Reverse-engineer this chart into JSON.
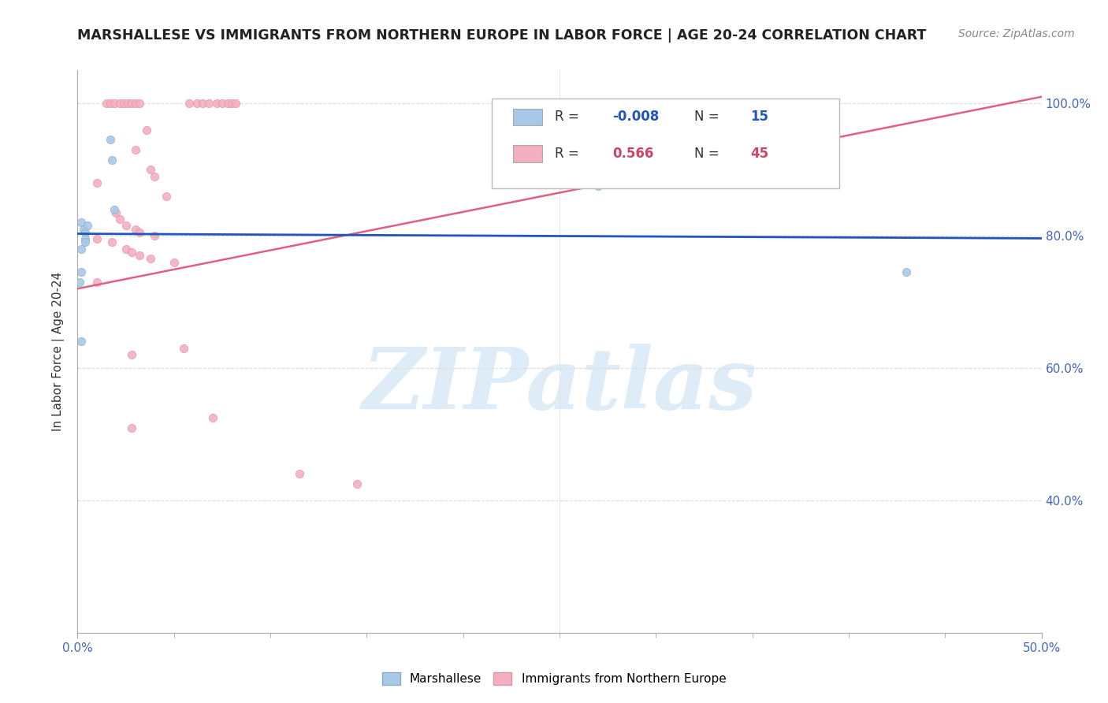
{
  "title": "MARSHALLESE VS IMMIGRANTS FROM NORTHERN EUROPE IN LABOR FORCE | AGE 20-24 CORRELATION CHART",
  "source": "Source: ZipAtlas.com",
  "ylabel": "In Labor Force | Age 20-24",
  "xlim": [
    0.0,
    0.5
  ],
  "ylim": [
    0.2,
    1.05
  ],
  "xtick_labels_bottom": [
    "0.0%",
    "50.0%"
  ],
  "xtick_vals_bottom": [
    0.0,
    0.5
  ],
  "ytick_labels": [
    "40.0%",
    "60.0%",
    "80.0%",
    "100.0%"
  ],
  "ytick_vals": [
    0.4,
    0.6,
    0.8,
    1.0
  ],
  "marshallese_points": [
    [
      0.002,
      0.82
    ],
    [
      0.003,
      0.81
    ],
    [
      0.004,
      0.805
    ],
    [
      0.004,
      0.795
    ],
    [
      0.004,
      0.79
    ],
    [
      0.005,
      0.815
    ],
    [
      0.002,
      0.78
    ],
    [
      0.002,
      0.745
    ],
    [
      0.017,
      0.945
    ],
    [
      0.018,
      0.915
    ],
    [
      0.019,
      0.84
    ],
    [
      0.002,
      0.64
    ],
    [
      0.27,
      0.875
    ],
    [
      0.43,
      0.745
    ],
    [
      0.001,
      0.73
    ]
  ],
  "northern_europe_points": [
    [
      0.015,
      1.0
    ],
    [
      0.017,
      1.0
    ],
    [
      0.019,
      1.0
    ],
    [
      0.022,
      1.0
    ],
    [
      0.024,
      1.0
    ],
    [
      0.026,
      1.0
    ],
    [
      0.028,
      1.0
    ],
    [
      0.03,
      1.0
    ],
    [
      0.032,
      1.0
    ],
    [
      0.058,
      1.0
    ],
    [
      0.062,
      1.0
    ],
    [
      0.065,
      1.0
    ],
    [
      0.068,
      1.0
    ],
    [
      0.072,
      1.0
    ],
    [
      0.075,
      1.0
    ],
    [
      0.078,
      1.0
    ],
    [
      0.08,
      1.0
    ],
    [
      0.082,
      1.0
    ],
    [
      0.036,
      0.96
    ],
    [
      0.03,
      0.93
    ],
    [
      0.038,
      0.9
    ],
    [
      0.04,
      0.89
    ],
    [
      0.01,
      0.88
    ],
    [
      0.046,
      0.86
    ],
    [
      0.02,
      0.835
    ],
    [
      0.022,
      0.825
    ],
    [
      0.025,
      0.815
    ],
    [
      0.03,
      0.81
    ],
    [
      0.032,
      0.805
    ],
    [
      0.04,
      0.8
    ],
    [
      0.01,
      0.795
    ],
    [
      0.018,
      0.79
    ],
    [
      0.025,
      0.78
    ],
    [
      0.028,
      0.775
    ],
    [
      0.032,
      0.77
    ],
    [
      0.038,
      0.765
    ],
    [
      0.05,
      0.76
    ],
    [
      0.01,
      0.73
    ],
    [
      0.055,
      0.63
    ],
    [
      0.028,
      0.62
    ],
    [
      0.07,
      0.525
    ],
    [
      0.028,
      0.51
    ],
    [
      0.115,
      0.44
    ],
    [
      0.145,
      0.425
    ]
  ],
  "blue_line_x": [
    0.0,
    0.5
  ],
  "blue_line_y": [
    0.803,
    0.796
  ],
  "pink_line_x": [
    0.0,
    0.5
  ],
  "pink_line_y": [
    0.72,
    1.01
  ],
  "marker_size": 55,
  "marshallese_color": "#a8c8e8",
  "marshallese_edge": "#88aac8",
  "northern_color": "#f4b0c0",
  "northern_edge": "#e090a8",
  "blue_line_color": "#2255bb",
  "pink_line_color": "#e06080",
  "watermark_color": "#d0e4f4",
  "grid_color": "#dddddd",
  "tick_color": "#4466bb",
  "title_color": "#222222",
  "ylabel_color": "#333333",
  "source_color": "#888888",
  "background": "#ffffff",
  "legend_R_blue": "#2255bb",
  "legend_R_pink": "#cc4466"
}
